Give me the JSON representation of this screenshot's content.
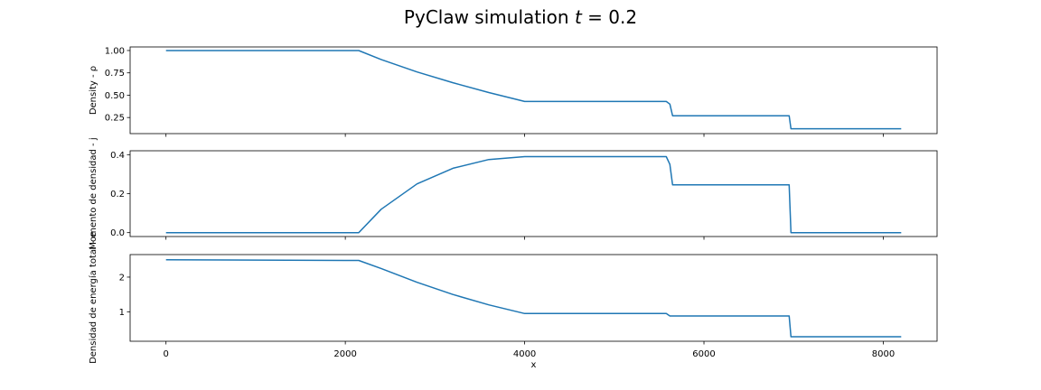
{
  "figure": {
    "title": "PyClaw simulation t = 0.2",
    "title_main": "PyClaw simulation ",
    "title_var": "t",
    "title_rest": " = 0.2",
    "line_color": "#1f77b4",
    "xlabel": "x"
  },
  "chart_data": [
    {
      "type": "line",
      "ylabel": "Density - ρ",
      "xlim": [
        -400,
        8600
      ],
      "ylim": [
        0.07,
        1.04
      ],
      "x_ticks": [
        0,
        2000,
        4000,
        6000,
        8000
      ],
      "y_ticks": [
        0.25,
        0.5,
        0.75,
        1.0
      ],
      "y_tick_labels": [
        "0.25",
        "0.50",
        "0.75",
        "1.00"
      ],
      "show_x_tick_labels": false,
      "series": [
        {
          "x": [
            0,
            2150,
            2400,
            2800,
            3200,
            3600,
            4000,
            5580,
            5620,
            5650,
            6950,
            6970,
            8200
          ],
          "y": [
            1.0,
            1.0,
            0.9,
            0.76,
            0.64,
            0.53,
            0.43,
            0.43,
            0.4,
            0.27,
            0.27,
            0.125,
            0.125
          ]
        }
      ]
    },
    {
      "type": "line",
      "ylabel": "Momento de densidad - j",
      "xlim": [
        -400,
        8600
      ],
      "ylim": [
        -0.02,
        0.42
      ],
      "x_ticks": [
        0,
        2000,
        4000,
        6000,
        8000
      ],
      "y_ticks": [
        0.0,
        0.2,
        0.4
      ],
      "y_tick_labels": [
        "0.0",
        "0.2",
        "0.4"
      ],
      "show_x_tick_labels": false,
      "series": [
        {
          "x": [
            0,
            2150,
            2400,
            2800,
            3200,
            3600,
            4000,
            5580,
            5620,
            5650,
            6950,
            6970,
            8200
          ],
          "y": [
            0.0,
            0.0,
            0.12,
            0.25,
            0.33,
            0.375,
            0.39,
            0.39,
            0.35,
            0.245,
            0.245,
            0.0,
            0.0
          ]
        }
      ]
    },
    {
      "type": "line",
      "ylabel": "Densidad de energía total - e",
      "xlabel": "x",
      "xlim": [
        -400,
        8600
      ],
      "ylim": [
        0.15,
        2.65
      ],
      "x_ticks": [
        0,
        2000,
        4000,
        6000,
        8000
      ],
      "x_tick_labels": [
        "0",
        "2000",
        "4000",
        "6000",
        "8000"
      ],
      "y_ticks": [
        1,
        2
      ],
      "y_tick_labels": [
        "1",
        "2"
      ],
      "show_x_tick_labels": true,
      "series": [
        {
          "x": [
            0,
            2150,
            2400,
            2800,
            3200,
            3600,
            4000,
            5580,
            5620,
            5650,
            6950,
            6970,
            8200
          ],
          "y": [
            2.5,
            2.48,
            2.25,
            1.85,
            1.5,
            1.2,
            0.95,
            0.95,
            0.88,
            0.88,
            0.88,
            0.28,
            0.28
          ]
        }
      ]
    }
  ]
}
